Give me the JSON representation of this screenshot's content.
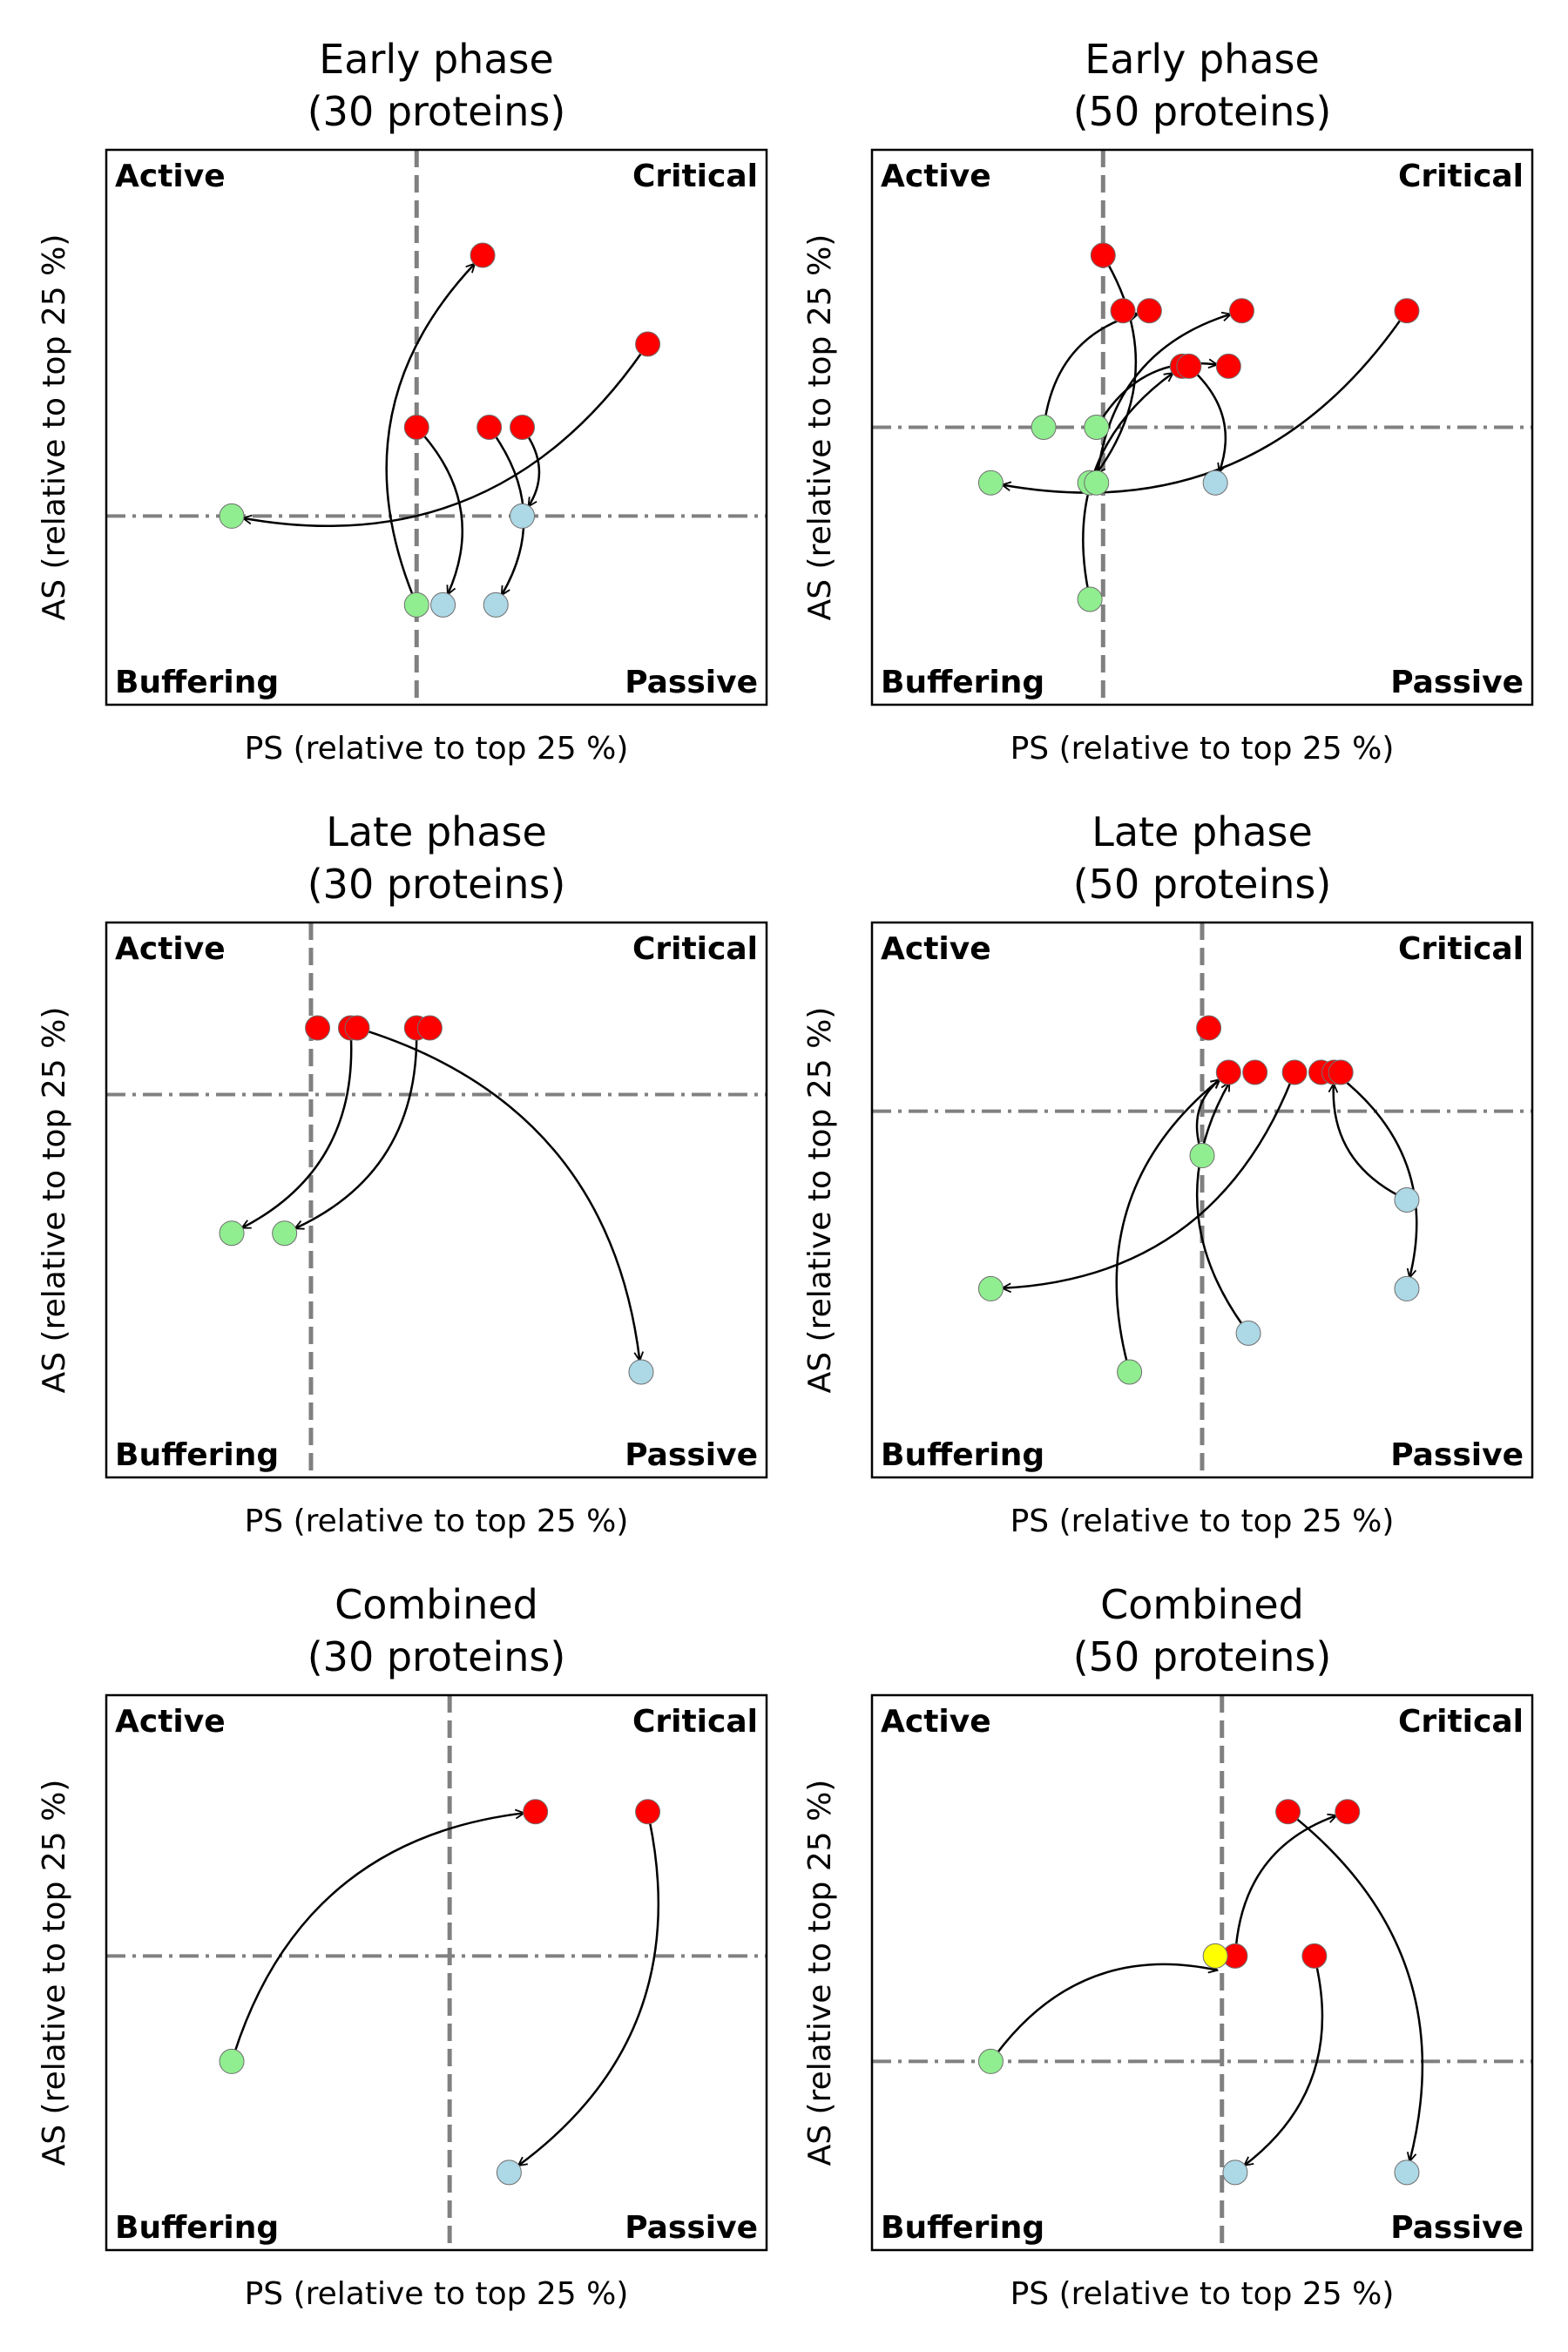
{
  "colors": {
    "critical": "#ff0000",
    "buffering": "#90ee90",
    "passive": "#add8e6",
    "other": "#ffff00",
    "threshold_line": "#808080",
    "arrow": "#000000"
  },
  "chart_data": [
    {
      "type": "scatter",
      "title": "Early phase\n(30 proteins)",
      "title_lines": [
        "Early phase",
        "(30 proteins)"
      ],
      "xlabel": "PS (relative to top 25 %)",
      "ylabel": "AS (relative to top 25 %)",
      "quadrant_labels": {
        "top_left": "Active",
        "top_right": "Critical",
        "bottom_left": "Buffering",
        "bottom_right": "Passive"
      },
      "xlim": [
        0,
        1
      ],
      "ylim": [
        0,
        1
      ],
      "x_threshold": 0.47,
      "y_threshold": 0.34,
      "grid": false,
      "points": [
        {
          "x": 0.57,
          "y": 0.81,
          "category": "critical"
        },
        {
          "x": 0.82,
          "y": 0.65,
          "category": "critical"
        },
        {
          "x": 0.47,
          "y": 0.5,
          "category": "critical"
        },
        {
          "x": 0.58,
          "y": 0.5,
          "category": "critical"
        },
        {
          "x": 0.63,
          "y": 0.5,
          "category": "critical"
        },
        {
          "x": 0.19,
          "y": 0.34,
          "category": "buffering"
        },
        {
          "x": 0.47,
          "y": 0.18,
          "category": "buffering"
        },
        {
          "x": 0.51,
          "y": 0.18,
          "category": "passive"
        },
        {
          "x": 0.59,
          "y": 0.18,
          "category": "passive"
        },
        {
          "x": 0.63,
          "y": 0.34,
          "category": "passive"
        }
      ],
      "arrows": [
        {
          "from": [
            0.82,
            0.65
          ],
          "to": [
            0.19,
            0.34
          ]
        },
        {
          "from": [
            0.47,
            0.18
          ],
          "to": [
            0.57,
            0.81
          ]
        },
        {
          "from": [
            0.47,
            0.5
          ],
          "to": [
            0.51,
            0.18
          ]
        },
        {
          "from": [
            0.58,
            0.5
          ],
          "to": [
            0.59,
            0.18
          ]
        },
        {
          "from": [
            0.63,
            0.5
          ],
          "to": [
            0.63,
            0.34
          ]
        }
      ]
    },
    {
      "type": "scatter",
      "title": "Early phase\n(50 proteins)",
      "title_lines": [
        "Early phase",
        "(50 proteins)"
      ],
      "xlabel": "PS (relative to top 25 %)",
      "ylabel": "AS (relative to top 25 %)",
      "quadrant_labels": {
        "top_left": "Active",
        "top_right": "Critical",
        "bottom_left": "Buffering",
        "bottom_right": "Passive"
      },
      "xlim": [
        0,
        1
      ],
      "ylim": [
        0,
        1
      ],
      "x_threshold": 0.35,
      "y_threshold": 0.5,
      "grid": false,
      "points": [
        {
          "x": 0.35,
          "y": 0.81,
          "category": "critical"
        },
        {
          "x": 0.38,
          "y": 0.71,
          "category": "critical"
        },
        {
          "x": 0.42,
          "y": 0.71,
          "category": "critical"
        },
        {
          "x": 0.56,
          "y": 0.71,
          "category": "critical"
        },
        {
          "x": 0.81,
          "y": 0.71,
          "category": "critical"
        },
        {
          "x": 0.47,
          "y": 0.61,
          "category": "critical"
        },
        {
          "x": 0.48,
          "y": 0.61,
          "category": "critical"
        },
        {
          "x": 0.54,
          "y": 0.61,
          "category": "critical"
        },
        {
          "x": 0.26,
          "y": 0.5,
          "category": "buffering"
        },
        {
          "x": 0.34,
          "y": 0.5,
          "category": "buffering"
        },
        {
          "x": 0.18,
          "y": 0.4,
          "category": "buffering"
        },
        {
          "x": 0.33,
          "y": 0.4,
          "category": "buffering"
        },
        {
          "x": 0.34,
          "y": 0.4,
          "category": "buffering"
        },
        {
          "x": 0.33,
          "y": 0.19,
          "category": "buffering"
        },
        {
          "x": 0.52,
          "y": 0.4,
          "category": "passive"
        }
      ],
      "arrows": [
        {
          "from": [
            0.81,
            0.71
          ],
          "to": [
            0.18,
            0.4
          ]
        },
        {
          "from": [
            0.35,
            0.81
          ],
          "to": [
            0.33,
            0.4
          ]
        },
        {
          "from": [
            0.26,
            0.5
          ],
          "to": [
            0.42,
            0.71
          ]
        },
        {
          "from": [
            0.34,
            0.4
          ],
          "to": [
            0.56,
            0.71
          ]
        },
        {
          "from": [
            0.34,
            0.5
          ],
          "to": [
            0.54,
            0.61
          ]
        },
        {
          "from": [
            0.33,
            0.19
          ],
          "to": [
            0.47,
            0.61
          ]
        },
        {
          "from": [
            0.48,
            0.61
          ],
          "to": [
            0.52,
            0.4
          ]
        }
      ]
    },
    {
      "type": "scatter",
      "title": "Late phase\n(30 proteins)",
      "title_lines": [
        "Late phase",
        "(30 proteins)"
      ],
      "xlabel": "PS (relative to top 25 %)",
      "ylabel": "AS (relative to top 25 %)",
      "quadrant_labels": {
        "top_left": "Active",
        "top_right": "Critical",
        "bottom_left": "Buffering",
        "bottom_right": "Passive"
      },
      "xlim": [
        0,
        1
      ],
      "ylim": [
        0,
        1
      ],
      "x_threshold": 0.31,
      "y_threshold": 0.69,
      "grid": false,
      "points": [
        {
          "x": 0.32,
          "y": 0.81,
          "category": "critical"
        },
        {
          "x": 0.37,
          "y": 0.81,
          "category": "critical"
        },
        {
          "x": 0.38,
          "y": 0.81,
          "category": "critical"
        },
        {
          "x": 0.47,
          "y": 0.81,
          "category": "critical"
        },
        {
          "x": 0.49,
          "y": 0.81,
          "category": "critical"
        },
        {
          "x": 0.19,
          "y": 0.44,
          "category": "buffering"
        },
        {
          "x": 0.27,
          "y": 0.44,
          "category": "buffering"
        },
        {
          "x": 0.81,
          "y": 0.19,
          "category": "passive"
        }
      ],
      "arrows": [
        {
          "from": [
            0.37,
            0.81
          ],
          "to": [
            0.19,
            0.44
          ]
        },
        {
          "from": [
            0.47,
            0.81
          ],
          "to": [
            0.27,
            0.44
          ]
        },
        {
          "from": [
            0.38,
            0.81
          ],
          "to": [
            0.81,
            0.19
          ]
        }
      ]
    },
    {
      "type": "scatter",
      "title": "Late phase\n(50 proteins)",
      "title_lines": [
        "Late phase",
        "(50 proteins)"
      ],
      "xlabel": "PS (relative to top 25 %)",
      "ylabel": "AS (relative to top 25 %)",
      "quadrant_labels": {
        "top_left": "Active",
        "top_right": "Critical",
        "bottom_left": "Buffering",
        "bottom_right": "Passive"
      },
      "xlim": [
        0,
        1
      ],
      "ylim": [
        0,
        1
      ],
      "x_threshold": 0.5,
      "y_threshold": 0.66,
      "grid": false,
      "points": [
        {
          "x": 0.51,
          "y": 0.81,
          "category": "critical"
        },
        {
          "x": 0.54,
          "y": 0.73,
          "category": "critical"
        },
        {
          "x": 0.58,
          "y": 0.73,
          "category": "critical"
        },
        {
          "x": 0.64,
          "y": 0.73,
          "category": "critical"
        },
        {
          "x": 0.68,
          "y": 0.73,
          "category": "critical"
        },
        {
          "x": 0.7,
          "y": 0.73,
          "category": "critical"
        },
        {
          "x": 0.71,
          "y": 0.73,
          "category": "critical"
        },
        {
          "x": 0.5,
          "y": 0.58,
          "category": "buffering"
        },
        {
          "x": 0.18,
          "y": 0.34,
          "category": "buffering"
        },
        {
          "x": 0.39,
          "y": 0.19,
          "category": "buffering"
        },
        {
          "x": 0.81,
          "y": 0.5,
          "category": "passive"
        },
        {
          "x": 0.81,
          "y": 0.34,
          "category": "passive"
        },
        {
          "x": 0.57,
          "y": 0.26,
          "category": "passive"
        }
      ],
      "arrows": [
        {
          "from": [
            0.64,
            0.73
          ],
          "to": [
            0.18,
            0.34
          ]
        },
        {
          "from": [
            0.5,
            0.58
          ],
          "to": [
            0.54,
            0.73
          ]
        },
        {
          "from": [
            0.39,
            0.19
          ],
          "to": [
            0.54,
            0.73
          ]
        },
        {
          "from": [
            0.57,
            0.26
          ],
          "to": [
            0.55,
            0.73
          ]
        },
        {
          "from": [
            0.81,
            0.5
          ],
          "to": [
            0.7,
            0.73
          ]
        },
        {
          "from": [
            0.7,
            0.73
          ],
          "to": [
            0.81,
            0.34
          ]
        }
      ]
    },
    {
      "type": "scatter",
      "title": "Combined\n(30 proteins)",
      "title_lines": [
        "Combined",
        "(30 proteins)"
      ],
      "xlabel": "PS (relative to top 25 %)",
      "ylabel": "AS (relative to top 25 %)",
      "quadrant_labels": {
        "top_left": "Active",
        "top_right": "Critical",
        "bottom_left": "Buffering",
        "bottom_right": "Passive"
      },
      "xlim": [
        0,
        1
      ],
      "ylim": [
        0,
        1
      ],
      "x_threshold": 0.52,
      "y_threshold": 0.53,
      "grid": false,
      "points": [
        {
          "x": 0.65,
          "y": 0.79,
          "category": "critical"
        },
        {
          "x": 0.82,
          "y": 0.79,
          "category": "critical"
        },
        {
          "x": 0.19,
          "y": 0.34,
          "category": "buffering"
        },
        {
          "x": 0.61,
          "y": 0.14,
          "category": "passive"
        }
      ],
      "arrows": [
        {
          "from": [
            0.19,
            0.34
          ],
          "to": [
            0.65,
            0.79
          ]
        },
        {
          "from": [
            0.82,
            0.79
          ],
          "to": [
            0.61,
            0.14
          ]
        }
      ]
    },
    {
      "type": "scatter",
      "title": "Combined\n(50 proteins)",
      "title_lines": [
        "Combined",
        "(50 proteins)"
      ],
      "xlabel": "PS (relative to top 25 %)",
      "ylabel": "AS (relative to top 25 %)",
      "quadrant_labels": {
        "top_left": "Active",
        "top_right": "Critical",
        "bottom_left": "Buffering",
        "bottom_right": "Passive"
      },
      "xlim": [
        0,
        1
      ],
      "ylim": [
        0,
        1
      ],
      "x_threshold": 0.53,
      "y_threshold": 0.34,
      "grid": false,
      "points": [
        {
          "x": 0.63,
          "y": 0.79,
          "category": "critical"
        },
        {
          "x": 0.72,
          "y": 0.79,
          "category": "critical"
        },
        {
          "x": 0.55,
          "y": 0.53,
          "category": "critical"
        },
        {
          "x": 0.67,
          "y": 0.53,
          "category": "critical"
        },
        {
          "x": 0.52,
          "y": 0.53,
          "category": "other"
        },
        {
          "x": 0.18,
          "y": 0.34,
          "category": "buffering"
        },
        {
          "x": 0.55,
          "y": 0.14,
          "category": "passive"
        },
        {
          "x": 0.81,
          "y": 0.14,
          "category": "passive"
        }
      ],
      "arrows": [
        {
          "from": [
            0.18,
            0.34
          ],
          "to": [
            0.54,
            0.5
          ]
        },
        {
          "from": [
            0.55,
            0.53
          ],
          "to": [
            0.72,
            0.79
          ]
        },
        {
          "from": [
            0.67,
            0.53
          ],
          "to": [
            0.55,
            0.14
          ]
        },
        {
          "from": [
            0.63,
            0.79
          ],
          "to": [
            0.81,
            0.14
          ]
        }
      ]
    }
  ]
}
